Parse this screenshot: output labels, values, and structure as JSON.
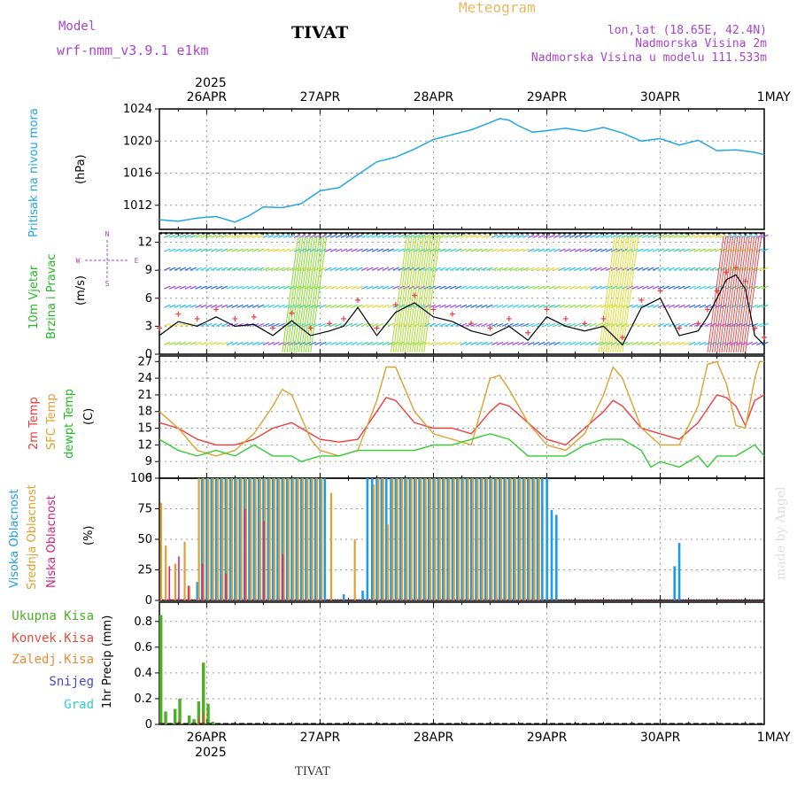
{
  "header": {
    "model_label": "Model",
    "model_name": "wrf-nmm_v3.9.1 e1km",
    "title": "TIVAT",
    "meteogram": "Meteogram",
    "lonlat": "lon,lat (18.65E, 42.4N)",
    "elevation": "Nadmorska Visina 2m",
    "model_elevation": "Nadmorska Visina u modelu 111.533m"
  },
  "footer": {
    "station": "TIVAT",
    "watermark": "made by Angel"
  },
  "x_axis": {
    "year": "2025",
    "dates": [
      "26APR",
      "27APR",
      "28APR",
      "29APR",
      "30APR",
      "1MAY"
    ],
    "start_hour": 14,
    "end_hour": 142
  },
  "colors": {
    "pressure": "#22a7e6",
    "temp2m": "#f03c3c",
    "sfc_temp": "#e0a030",
    "dewpt": "#33cc33",
    "high_cloud": "#1e9be8",
    "mid_cloud": "#e0a030",
    "low_cloud": "#dd2277",
    "total_precip": "#4caf26",
    "conv_precip": "#e84b3c",
    "frz_precip": "#f08a30",
    "snow": "#4646dd",
    "graupel": "#33cccc",
    "wind_legend": "#aa44cc"
  },
  "panels": {
    "pressure": {
      "label": "Pritisak na nivou mora",
      "unit": "(hPa)"
    },
    "wind": {
      "label1": "10m Vjetar",
      "label2": "Brzina i Pravac",
      "unit": "(m/s)",
      "compass_n": "N",
      "compass_s": "S",
      "compass_w": "W",
      "compass_e": "E"
    },
    "temp": {
      "label1": "2m Temp",
      "label2": "SFC Temp",
      "label3": "dewpt Temp",
      "unit": "(C)"
    },
    "cloud": {
      "label1": "Visoka Oblacnost",
      "label2": "Srednja Oblacnost",
      "label3": "Niska Oblacnost",
      "unit": "(%)"
    },
    "precip": {
      "unit": "1hr Precip (mm)",
      "legend": [
        "Ukupna Kisa",
        "Konvek.Kisa",
        "Zaledj.Kisa",
        "Snijeg",
        "Grad"
      ]
    }
  },
  "chart_data": [
    {
      "type": "line",
      "title": "",
      "ylabel": "Pritisak na nivou mora (hPa)",
      "ylim": [
        1009,
        1024
      ],
      "yticks": [
        "1012",
        "1016",
        "1020",
        "1024"
      ],
      "grid": true,
      "series": [
        {
          "name": "Pritisak na nivou mora",
          "x": [
            14,
            18,
            22,
            26,
            30,
            33,
            36,
            40,
            44,
            48,
            52,
            56,
            60,
            64,
            68,
            72,
            76,
            80,
            84,
            86,
            88,
            90,
            93,
            96,
            100,
            104,
            108,
            112,
            116,
            120,
            124,
            128,
            132,
            136,
            140,
            142
          ],
          "values": [
            1010.2,
            1010.0,
            1010.4,
            1010.6,
            1009.9,
            1010.7,
            1011.8,
            1011.7,
            1012.2,
            1013.8,
            1014.2,
            1015.8,
            1017.4,
            1018.0,
            1019.0,
            1020.2,
            1020.8,
            1021.4,
            1022.3,
            1022.8,
            1022.6,
            1021.9,
            1021.1,
            1021.3,
            1021.6,
            1021.2,
            1021.7,
            1021.0,
            1020.0,
            1020.3,
            1019.5,
            1020.1,
            1018.8,
            1018.9,
            1018.6,
            1018.3
          ]
        }
      ]
    },
    {
      "type": "line",
      "title": "",
      "ylabel": "10m Vjetar Brzina i Pravac (m/s)",
      "ylim": [
        0,
        13
      ],
      "yticks": [
        "0",
        "3",
        "6",
        "9",
        "12"
      ],
      "grid": true,
      "series": [
        {
          "name": "10m Vjetar",
          "x": [
            14,
            18,
            22,
            26,
            30,
            34,
            38,
            42,
            46,
            50,
            53,
            56,
            60,
            64,
            68,
            72,
            76,
            80,
            84,
            88,
            92,
            96,
            100,
            104,
            108,
            112,
            116,
            120,
            124,
            128,
            130,
            132,
            134,
            136,
            138,
            140,
            142
          ],
          "values": [
            2.0,
            3.5,
            3.0,
            4.0,
            3.0,
            3.2,
            2.0,
            3.6,
            2.0,
            2.5,
            3.0,
            5.0,
            2.0,
            4.5,
            5.5,
            4.0,
            3.5,
            2.5,
            2.0,
            3.0,
            1.5,
            4.0,
            3.0,
            2.5,
            3.0,
            1.0,
            5.0,
            6.0,
            2.0,
            2.5,
            4.0,
            6.0,
            8.0,
            8.5,
            7.0,
            2.0,
            1.0
          ]
        }
      ]
    },
    {
      "type": "line",
      "title": "",
      "ylabel": "Temp (C)",
      "ylim": [
        6,
        28
      ],
      "yticks": [
        "6",
        "9",
        "12",
        "15",
        "18",
        "21",
        "24",
        "27"
      ],
      "grid": true,
      "series": [
        {
          "name": "2m Temp",
          "x": [
            14,
            18,
            22,
            26,
            30,
            34,
            38,
            42,
            44,
            48,
            52,
            56,
            60,
            62,
            64,
            68,
            72,
            76,
            80,
            84,
            86,
            88,
            92,
            96,
            100,
            104,
            108,
            110,
            112,
            116,
            120,
            124,
            128,
            132,
            134,
            136,
            138,
            140,
            142
          ],
          "values": [
            16,
            15,
            13,
            12,
            12,
            13,
            15,
            16,
            15,
            13,
            12.5,
            13,
            18,
            20.5,
            20,
            16,
            15,
            15,
            14,
            18,
            19.5,
            19,
            16,
            13,
            12,
            15,
            18,
            20,
            19,
            15,
            14,
            13,
            16,
            21,
            20.5,
            19,
            15.5,
            20,
            21
          ]
        },
        {
          "name": "SFC Temp",
          "x": [
            14,
            18,
            22,
            26,
            30,
            34,
            38,
            40,
            42,
            44,
            46,
            48,
            52,
            56,
            60,
            62,
            64,
            68,
            72,
            76,
            80,
            82,
            84,
            86,
            88,
            92,
            96,
            100,
            104,
            108,
            110,
            112,
            116,
            120,
            124,
            128,
            130,
            132,
            134,
            136,
            138,
            140,
            141,
            142
          ],
          "values": [
            18,
            15,
            11,
            10,
            11,
            14,
            19,
            22,
            21,
            17,
            13,
            11,
            10,
            11,
            20,
            26,
            26,
            18,
            14,
            13,
            12,
            18,
            24,
            24.5,
            22,
            16,
            12,
            11,
            14,
            21,
            26,
            24,
            15,
            12,
            12,
            19,
            26.5,
            27,
            23,
            15.5,
            15,
            24,
            27,
            27
          ]
        },
        {
          "name": "dewpt Temp",
          "x": [
            14,
            18,
            22,
            26,
            30,
            34,
            38,
            42,
            44,
            48,
            52,
            56,
            60,
            64,
            68,
            72,
            76,
            80,
            84,
            88,
            92,
            96,
            100,
            104,
            108,
            112,
            116,
            118,
            120,
            124,
            128,
            130,
            132,
            136,
            140,
            142
          ],
          "values": [
            13,
            11,
            10,
            11,
            10,
            12,
            10,
            10,
            9,
            10,
            10,
            11,
            11,
            11,
            11,
            12,
            12,
            13,
            14,
            13,
            10,
            10,
            10,
            12,
            13,
            13,
            11,
            8,
            9,
            8,
            10,
            8,
            10,
            10,
            12,
            10
          ]
        }
      ]
    },
    {
      "type": "bar",
      "title": "",
      "ylabel": "Oblacnost (%)",
      "ylim": [
        0,
        100
      ],
      "yticks": [
        "0",
        "25",
        "50",
        "75",
        "100"
      ],
      "grid": true,
      "series": [
        {
          "name": "Visoka Oblacnost",
          "x": [
            22,
            23,
            24,
            25,
            26,
            27,
            28,
            29,
            30,
            31,
            32,
            33,
            34,
            35,
            36,
            37,
            38,
            39,
            40,
            41,
            42,
            43,
            44,
            45,
            46,
            47,
            48,
            49,
            53,
            57,
            58,
            59,
            60,
            61,
            62,
            63,
            64,
            65,
            66,
            67,
            68,
            69,
            70,
            71,
            72,
            73,
            74,
            75,
            76,
            77,
            78,
            79,
            80,
            81,
            82,
            83,
            84,
            85,
            86,
            87,
            88,
            89,
            90,
            91,
            92,
            93,
            94,
            95,
            96,
            97,
            98,
            123,
            124
          ],
          "values": [
            15,
            100,
            100,
            100,
            100,
            100,
            100,
            100,
            100,
            100,
            100,
            100,
            100,
            100,
            100,
            100,
            100,
            100,
            100,
            100,
            100,
            100,
            100,
            100,
            100,
            100,
            100,
            100,
            5,
            8,
            100,
            100,
            100,
            100,
            100,
            100,
            100,
            100,
            100,
            100,
            100,
            100,
            100,
            100,
            100,
            100,
            100,
            100,
            100,
            100,
            100,
            100,
            100,
            100,
            100,
            100,
            100,
            100,
            100,
            100,
            100,
            100,
            100,
            100,
            100,
            100,
            100,
            100,
            100,
            74,
            70,
            28,
            47
          ]
        },
        {
          "name": "Srednja Oblacnost",
          "x": [
            14,
            15,
            17,
            19,
            20,
            22,
            23,
            24,
            25,
            26,
            27,
            28,
            29,
            30,
            31,
            32,
            33,
            34,
            35,
            36,
            37,
            38,
            39,
            40,
            41,
            42,
            43,
            44,
            45,
            46,
            47,
            48,
            50,
            55,
            59,
            60,
            61,
            62,
            63,
            64,
            65,
            66,
            67,
            68,
            69,
            70,
            71,
            72,
            73,
            74,
            75,
            76,
            77,
            78,
            79,
            80,
            81,
            82,
            83,
            84,
            85,
            86,
            87,
            88,
            89,
            90,
            91,
            92,
            93,
            94
          ],
          "values": [
            80,
            45,
            30,
            48,
            12,
            100,
            100,
            100,
            100,
            100,
            100,
            100,
            100,
            100,
            100,
            100,
            100,
            100,
            100,
            100,
            100,
            100,
            100,
            100,
            100,
            100,
            100,
            100,
            100,
            100,
            100,
            100,
            88,
            50,
            95,
            100,
            100,
            62,
            100,
            100,
            100,
            100,
            100,
            100,
            100,
            100,
            100,
            100,
            100,
            100,
            100,
            100,
            100,
            100,
            100,
            100,
            100,
            100,
            100,
            100,
            100,
            100,
            100,
            100,
            100,
            100,
            100,
            100,
            100,
            100
          ]
        },
        {
          "name": "Niska Oblacnost",
          "x": [
            16,
            18,
            20,
            23,
            28,
            32,
            36,
            40
          ],
          "values": [
            28,
            36,
            12,
            30,
            22,
            75,
            65,
            38
          ]
        }
      ]
    },
    {
      "type": "bar",
      "title": "",
      "ylabel": "1hr Precip (mm)",
      "ylim": [
        0,
        0.95
      ],
      "yticks": [
        "0",
        "0.2",
        "0.4",
        "0.6",
        "0.8"
      ],
      "grid": true,
      "series": [
        {
          "name": "Ukupna Kisa",
          "x": [
            14,
            15,
            17,
            18,
            20,
            21,
            22,
            23,
            24,
            25
          ],
          "values": [
            0.85,
            0.1,
            0.12,
            0.2,
            0.07,
            0.04,
            0.18,
            0.48,
            0.16,
            0.02
          ]
        },
        {
          "name": "Konvek.Kisa",
          "x": [
            14,
            18,
            22,
            23
          ],
          "values": [
            0.02,
            0.03,
            0.05,
            0.1
          ]
        }
      ]
    }
  ]
}
